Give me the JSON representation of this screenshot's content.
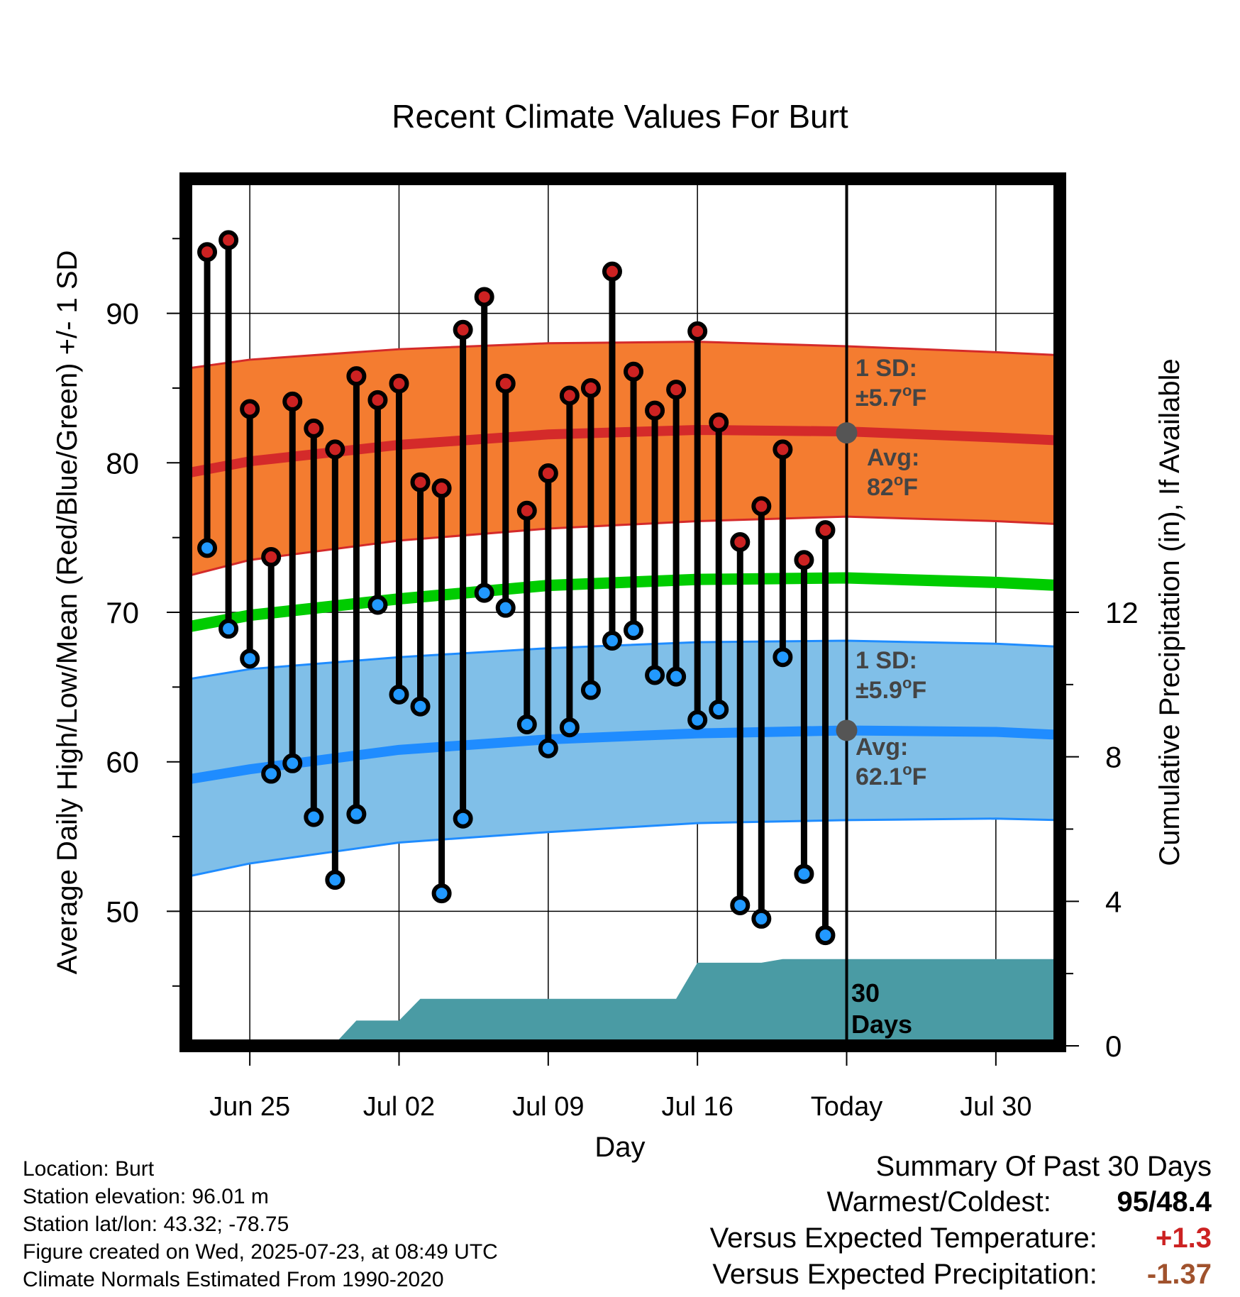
{
  "chart_data": {
    "type": "line",
    "title": "Recent Climate Values For Burt",
    "xlabel": "Day",
    "ylabel_left": "Average Daily High/Low/Mean (Red/Blue/Green) +/- 1 SD",
    "ylabel_right": "Cumulative Precipitation (in), If Available",
    "x_ticks": [
      "Jun 25",
      "Jul 02",
      "Jul 09",
      "Jul 16",
      "Today",
      "Jul 30"
    ],
    "x_tick_days": [
      0,
      7,
      14,
      21,
      28,
      35
    ],
    "x_range_days": [
      -3,
      38
    ],
    "y_left_ticks": [
      50,
      60,
      70,
      80,
      90
    ],
    "y_left_range": [
      41,
      99
    ],
    "y_right_ticks": [
      0,
      4,
      8,
      12
    ],
    "y_right_range": [
      0,
      24
    ],
    "grid": true,
    "daily_days": [
      -2,
      -1,
      0,
      1,
      2,
      3,
      4,
      5,
      6,
      7,
      8,
      9,
      10,
      11,
      12,
      13,
      14,
      15,
      16,
      17,
      18,
      19,
      20,
      21,
      22,
      23,
      24,
      25,
      26,
      27
    ],
    "series": [
      {
        "name": "High",
        "color": "#cc2222",
        "values": [
          94.1,
          94.9,
          83.6,
          73.7,
          84.1,
          82.3,
          80.9,
          85.8,
          84.2,
          85.3,
          78.7,
          78.3,
          88.9,
          91.1,
          85.3,
          76.8,
          79.3,
          84.5,
          85.0,
          92.8,
          86.1,
          83.5,
          84.9,
          88.8,
          82.7,
          74.7,
          77.1,
          80.9,
          73.5,
          75.5
        ]
      },
      {
        "name": "Low",
        "color": "#2299ff",
        "values": [
          74.3,
          68.9,
          66.9,
          59.2,
          59.9,
          56.3,
          52.1,
          56.5,
          70.5,
          64.5,
          63.7,
          51.2,
          56.2,
          71.3,
          70.3,
          62.5,
          60.9,
          62.3,
          64.8,
          68.1,
          68.8,
          65.8,
          65.7,
          62.8,
          63.5,
          50.4,
          49.5,
          67.0,
          52.5,
          48.4
        ]
      }
    ],
    "normals": {
      "days": [
        -3,
        0,
        7,
        14,
        21,
        28,
        35,
        38
      ],
      "high_avg": [
        79.3,
        80.1,
        81.2,
        81.9,
        82.2,
        82.1,
        81.7,
        81.5
      ],
      "high_upper": [
        86.3,
        86.9,
        87.6,
        88.0,
        88.1,
        87.8,
        87.4,
        87.2
      ],
      "high_lower": [
        72.4,
        73.5,
        74.8,
        75.6,
        76.1,
        76.4,
        76.1,
        75.9
      ],
      "mean_avg": [
        69.0,
        69.8,
        70.9,
        71.8,
        72.2,
        72.3,
        72.0,
        71.8
      ],
      "low_avg": [
        58.8,
        59.5,
        60.8,
        61.5,
        61.9,
        62.1,
        62.0,
        61.8
      ],
      "low_upper": [
        65.5,
        66.2,
        67.0,
        67.6,
        68.0,
        68.1,
        67.9,
        67.7
      ],
      "low_lower": [
        52.3,
        53.2,
        54.6,
        55.3,
        55.9,
        56.1,
        56.2,
        56.1
      ]
    },
    "precipitation": {
      "days": [
        -3,
        3.9,
        5.0,
        7.0,
        8.0,
        13.4,
        14.0,
        19.9,
        20.0,
        21.0,
        24.0,
        25.0,
        28.0,
        38.0
      ],
      "values": [
        0,
        0,
        0.7,
        0.7,
        1.3,
        1.3,
        1.3,
        1.3,
        1.3,
        2.3,
        2.3,
        2.4,
        2.4,
        2.4
      ],
      "color": "#4a9ba4"
    },
    "colors": {
      "high_band": "#f47c30",
      "high_line": "#d42a2a",
      "low_band": "#80bfe8",
      "low_line": "#1f8cff",
      "mean_line": "#00cc00"
    },
    "annotations": {
      "high_sd_title": "1 SD:",
      "high_sd_value": "±5.7",
      "high_avg_title": "Avg:",
      "high_avg_value": "82",
      "low_sd_title": "1 SD:",
      "low_sd_value": "±5.9",
      "low_avg_title": "Avg:",
      "low_avg_value": "62.1",
      "degree_unit": "F",
      "degree_symbol": "o",
      "period_number": "30",
      "period_unit": "Days"
    }
  },
  "info": {
    "location": "Location: Burt",
    "elevation": "Station elevation: 96.01 m",
    "latlon": "Station lat/lon: 43.32; -78.75",
    "created": "Figure created on Wed, 2025-07-23, at 08:49 UTC",
    "normals": "Climate Normals Estimated From 1990-2020"
  },
  "summary": {
    "title": "Summary Of Past 30 Days",
    "warmest_coldest_label": "Warmest/Coldest:",
    "warmest": "95",
    "coldest": "48.4",
    "temp_label": "Versus Expected Temperature:",
    "temp_value": "+1.3",
    "temp_color": "#cc2222",
    "precip_label": "Versus Expected Precipitation:",
    "precip_value": "-1.37",
    "precip_color": "#a0522d"
  }
}
